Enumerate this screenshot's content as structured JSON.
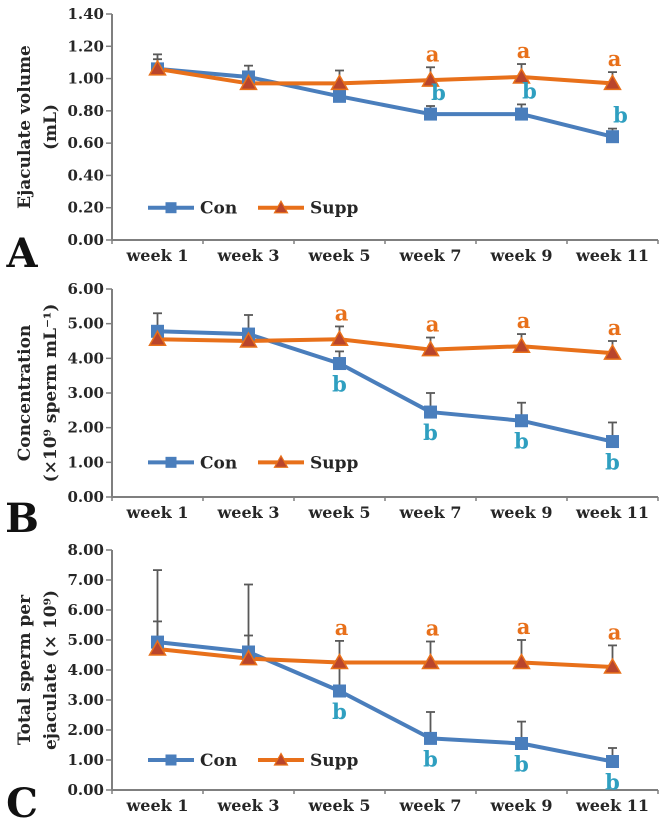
{
  "colors": {
    "con_blue": "#4a7ebc",
    "supp_orange": "#e8701a",
    "triangle_fill": "#b9452c",
    "sig_a_orange": "#e8701a",
    "sig_b_teal": "#2f9fc0",
    "error_bar_gray": "#595959",
    "axis_gray": "#7f7f7f",
    "text_dark": "#262626"
  },
  "legend": {
    "items": [
      "Con",
      "Supp"
    ]
  },
  "chart_data": [
    {
      "type": "line",
      "panel_label": "A",
      "ylabel_lines": [
        "Ejaculate volume",
        "(mL)"
      ],
      "ylim": [
        0.0,
        1.4
      ],
      "ytick_step": 0.2,
      "tick_decimals": 2,
      "grid": false,
      "legend_position": "inside-bottom-left",
      "categories": [
        "week 1",
        "week 3",
        "week 5",
        "week 7",
        "week 9",
        "week 11"
      ],
      "series": [
        {
          "name": "Con",
          "marker": "square",
          "color": "#4a7ebc",
          "sig_color": "#2f9fc0",
          "sig_pos": "above",
          "values": [
            1.06,
            1.01,
            0.89,
            0.78,
            0.78,
            0.64
          ],
          "err_up": [
            0.09,
            0.07,
            0.05,
            0.05,
            0.06,
            0.05
          ],
          "sig": [
            "",
            "",
            "",
            "b",
            "b",
            "b"
          ]
        },
        {
          "name": "Supp",
          "marker": "triangle",
          "color": "#e8701a",
          "marker_fill": "#b9452c",
          "sig_color": "#e8701a",
          "sig_pos": "above",
          "values": [
            1.06,
            0.97,
            0.97,
            0.99,
            1.01,
            0.97
          ],
          "err_up": [
            0.06,
            0.05,
            0.08,
            0.08,
            0.08,
            0.07
          ],
          "sig": [
            "",
            "",
            "",
            "a",
            "a",
            "a"
          ]
        }
      ]
    },
    {
      "type": "line",
      "panel_label": "B",
      "ylabel_lines": [
        "Concentration",
        "(×10⁹ sperm mL⁻¹)"
      ],
      "ylim": [
        0.0,
        6.0
      ],
      "ytick_step": 1.0,
      "tick_decimals": 2,
      "grid": false,
      "legend_position": "inside-bottom-left",
      "categories": [
        "week 1",
        "week 3",
        "week 5",
        "week 7",
        "week 9",
        "week 11"
      ],
      "series": [
        {
          "name": "Con",
          "marker": "square",
          "color": "#4a7ebc",
          "sig_color": "#2f9fc0",
          "sig_pos": "below",
          "values": [
            4.78,
            4.7,
            3.85,
            2.45,
            2.2,
            1.6
          ],
          "err_up": [
            0.52,
            0.55,
            0.35,
            0.55,
            0.52,
            0.55
          ],
          "sig": [
            "",
            "",
            "b",
            "b",
            "b",
            "b"
          ]
        },
        {
          "name": "Supp",
          "marker": "triangle",
          "color": "#e8701a",
          "marker_fill": "#b9452c",
          "sig_color": "#e8701a",
          "sig_pos": "above",
          "values": [
            4.55,
            4.5,
            4.55,
            4.25,
            4.35,
            4.15
          ],
          "err_up": [
            0.25,
            0.25,
            0.37,
            0.35,
            0.35,
            0.35
          ],
          "sig": [
            "",
            "",
            "a",
            "a",
            "a",
            "a"
          ]
        }
      ]
    },
    {
      "type": "line",
      "panel_label": "C",
      "ylabel_lines": [
        "Total sperm per",
        "ejaculate (× 10⁹)"
      ],
      "ylim": [
        0.0,
        8.0
      ],
      "ytick_step": 1.0,
      "tick_decimals": 2,
      "grid": false,
      "legend_position": "inside-bottom-left",
      "categories": [
        "week 1",
        "week 3",
        "week 5",
        "week 7",
        "week 9",
        "week 11"
      ],
      "series": [
        {
          "name": "Con",
          "marker": "square",
          "color": "#4a7ebc",
          "sig_color": "#2f9fc0",
          "sig_pos": "below",
          "values": [
            4.93,
            4.6,
            3.3,
            1.72,
            1.55,
            0.95
          ],
          "err_up": [
            2.4,
            2.25,
            1.0,
            0.88,
            0.73,
            0.45
          ],
          "sig": [
            "",
            "",
            "b",
            "b",
            "b",
            "b"
          ]
        },
        {
          "name": "Supp",
          "marker": "triangle",
          "color": "#e8701a",
          "marker_fill": "#b9452c",
          "sig_color": "#e8701a",
          "sig_pos": "above",
          "values": [
            4.7,
            4.38,
            4.25,
            4.25,
            4.25,
            4.1
          ],
          "err_up": [
            0.92,
            0.77,
            0.72,
            0.7,
            0.75,
            0.72
          ],
          "sig": [
            "",
            "",
            "a",
            "a",
            "a",
            "a"
          ]
        }
      ]
    }
  ]
}
